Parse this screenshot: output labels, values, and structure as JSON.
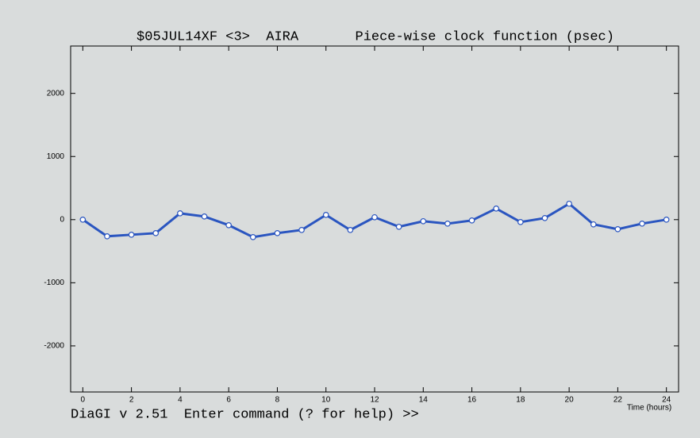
{
  "chart_data": {
    "type": "line",
    "title": "$05JUL14XF <3>  AIRA       Piece-wise clock function (psec)",
    "footer": "DiaGI v 2.51  Enter command (? for help) >>",
    "x_label": "Time (hours)",
    "x": [
      0,
      1,
      2,
      3,
      4,
      5,
      6,
      7,
      8,
      9,
      10,
      11,
      12,
      13,
      14,
      15,
      16,
      17,
      18,
      19,
      20,
      21,
      22,
      23,
      24
    ],
    "series": [
      {
        "name": "clock",
        "color": "#2a55c0",
        "values": [
          0,
          -264,
          -239,
          -214,
          100,
          50,
          -88,
          -277,
          -214,
          -164,
          75,
          -164,
          38,
          -113,
          -25,
          -63,
          -13,
          176,
          -38,
          25,
          252,
          -75,
          -151,
          -63,
          0
        ]
      }
    ],
    "xlim": [
      -0.5,
      24.5
    ],
    "xticks": [
      0,
      2,
      4,
      6,
      8,
      10,
      12,
      14,
      16,
      18,
      20,
      22,
      24
    ],
    "ylim": [
      -2730,
      2750
    ],
    "yticks": [
      -2000,
      -1000,
      0,
      1000,
      2000
    ]
  }
}
